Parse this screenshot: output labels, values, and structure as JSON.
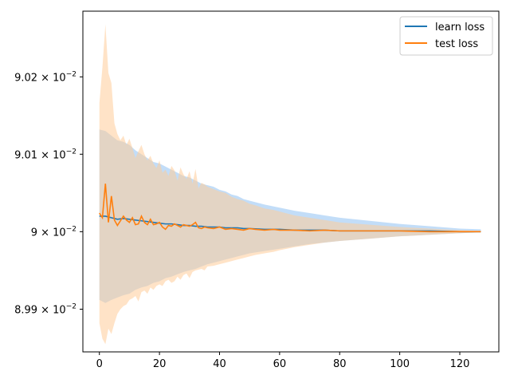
{
  "chart_data": {
    "type": "line",
    "title": "",
    "xlabel": "",
    "ylabel": "",
    "xlim": [
      -5.5,
      133
    ],
    "ylim": [
      0.089845,
      0.090285
    ],
    "yscale": "log",
    "xticks": [
      0,
      20,
      40,
      60,
      80,
      100,
      120
    ],
    "xtick_labels": [
      "0",
      "20",
      "40",
      "60",
      "80",
      "100",
      "120"
    ],
    "yticks": [
      0.0899,
      0.09,
      0.0901,
      0.0902
    ],
    "ytick_labels": [
      {
        "mantissa": "8.99",
        "exp": "−2"
      },
      {
        "mantissa": "9",
        "exp": "−2"
      },
      {
        "mantissa": "9.01",
        "exp": "−2"
      },
      {
        "mantissa": "9.02",
        "exp": "−2"
      }
    ],
    "grid": false,
    "legend_position": "top-right",
    "series": [
      {
        "name": "learn loss",
        "color": "#1f77b4",
        "band_color": "#a8cff5",
        "x": [
          0,
          2,
          4,
          6,
          8,
          10,
          12,
          14,
          16,
          18,
          20,
          22,
          24,
          26,
          28,
          30,
          32,
          34,
          36,
          38,
          40,
          42,
          44,
          46,
          48,
          50,
          55,
          60,
          65,
          70,
          75,
          80,
          90,
          100,
          110,
          120,
          127
        ],
        "mean": [
          0.09002,
          0.09002,
          0.090018,
          0.090016,
          0.090017,
          0.090016,
          0.090015,
          0.090014,
          0.090013,
          0.090012,
          0.090011,
          0.09001,
          0.09001,
          0.090009,
          0.090008,
          0.090008,
          0.090007,
          0.090007,
          0.090006,
          0.090006,
          0.090006,
          0.090005,
          0.090005,
          0.090005,
          0.090004,
          0.090004,
          0.090003,
          0.090003,
          0.090002,
          0.090002,
          0.090002,
          0.090001,
          0.090001,
          0.090001,
          0.090001,
          0.09,
          0.09
        ],
        "upper": [
          0.090132,
          0.09013,
          0.090124,
          0.090118,
          0.090116,
          0.090112,
          0.090105,
          0.0901,
          0.090095,
          0.09009,
          0.090088,
          0.090084,
          0.09008,
          0.090076,
          0.090072,
          0.09007,
          0.090066,
          0.090062,
          0.09006,
          0.090058,
          0.090054,
          0.090052,
          0.090048,
          0.090046,
          0.090042,
          0.09004,
          0.090035,
          0.090031,
          0.090027,
          0.090024,
          0.090021,
          0.090018,
          0.090014,
          0.09001,
          0.090007,
          0.090004,
          0.090003
        ],
        "lower": [
          0.089912,
          0.089908,
          0.089912,
          0.089915,
          0.089918,
          0.08992,
          0.089925,
          0.089928,
          0.08993,
          0.089934,
          0.089936,
          0.08994,
          0.089942,
          0.089945,
          0.089948,
          0.08995,
          0.089952,
          0.089955,
          0.089958,
          0.08996,
          0.089962,
          0.089964,
          0.089966,
          0.089968,
          0.08997,
          0.089972,
          0.089975,
          0.089978,
          0.089981,
          0.089984,
          0.089986,
          0.089988,
          0.089991,
          0.089994,
          0.089996,
          0.089998,
          0.089999
        ]
      },
      {
        "name": "test loss",
        "color": "#ff7f0e",
        "band_color": "#ffcc99",
        "x": [
          0,
          1,
          2,
          3,
          4,
          5,
          6,
          7,
          8,
          9,
          10,
          11,
          12,
          13,
          14,
          15,
          16,
          17,
          18,
          19,
          20,
          21,
          22,
          23,
          24,
          25,
          26,
          27,
          28,
          29,
          30,
          31,
          32,
          33,
          34,
          35,
          36,
          38,
          40,
          42,
          44,
          46,
          48,
          50,
          52,
          55,
          58,
          60,
          65,
          70,
          75,
          80,
          90,
          100,
          110,
          120,
          127
        ],
        "mean": [
          0.090024,
          0.090018,
          0.090062,
          0.090012,
          0.090046,
          0.090015,
          0.090008,
          0.090014,
          0.09002,
          0.090015,
          0.090012,
          0.090018,
          0.090009,
          0.09001,
          0.09002,
          0.090012,
          0.090009,
          0.090016,
          0.090009,
          0.09001,
          0.090012,
          0.090006,
          0.090003,
          0.090008,
          0.090007,
          0.09001,
          0.090008,
          0.090006,
          0.090009,
          0.090008,
          0.090007,
          0.090009,
          0.090012,
          0.090005,
          0.090004,
          0.090006,
          0.090005,
          0.090004,
          0.090006,
          0.090003,
          0.090004,
          0.090003,
          0.090002,
          0.090004,
          0.090003,
          0.090002,
          0.090003,
          0.090002,
          0.090002,
          0.090001,
          0.090002,
          0.090001,
          0.090001,
          0.090001,
          0.09,
          0.09,
          0.09
        ],
        "upper": [
          0.090166,
          0.090212,
          0.090268,
          0.090205,
          0.090192,
          0.09014,
          0.090126,
          0.090118,
          0.090124,
          0.090112,
          0.09012,
          0.090108,
          0.090095,
          0.090104,
          0.090112,
          0.0901,
          0.090092,
          0.090098,
          0.090088,
          0.090082,
          0.090092,
          0.090076,
          0.09008,
          0.090072,
          0.090085,
          0.090079,
          0.090066,
          0.090083,
          0.090074,
          0.090068,
          0.090078,
          0.090062,
          0.090081,
          0.090056,
          0.090063,
          0.090061,
          0.090058,
          0.090055,
          0.090052,
          0.09005,
          0.090045,
          0.090042,
          0.09004,
          0.090036,
          0.090034,
          0.09003,
          0.090028,
          0.090026,
          0.090021,
          0.090018,
          0.090015,
          0.090012,
          0.090009,
          0.090006,
          0.090004,
          0.090002,
          0.090001
        ],
        "lower": [
          0.089882,
          0.089862,
          0.089855,
          0.089875,
          0.089868,
          0.089882,
          0.089894,
          0.0899,
          0.089904,
          0.089906,
          0.089912,
          0.089914,
          0.089917,
          0.08991,
          0.089922,
          0.089924,
          0.08992,
          0.089928,
          0.089925,
          0.08993,
          0.089932,
          0.08993,
          0.089936,
          0.089938,
          0.089934,
          0.089936,
          0.089942,
          0.089938,
          0.089944,
          0.089946,
          0.08994,
          0.089948,
          0.08995,
          0.089951,
          0.089952,
          0.08995,
          0.089955,
          0.089956,
          0.089958,
          0.08996,
          0.089962,
          0.089964,
          0.089966,
          0.089968,
          0.08997,
          0.089972,
          0.089974,
          0.089976,
          0.08998,
          0.089983,
          0.089986,
          0.089988,
          0.089991,
          0.089994,
          0.089996,
          0.089998,
          0.089999
        ]
      }
    ]
  }
}
